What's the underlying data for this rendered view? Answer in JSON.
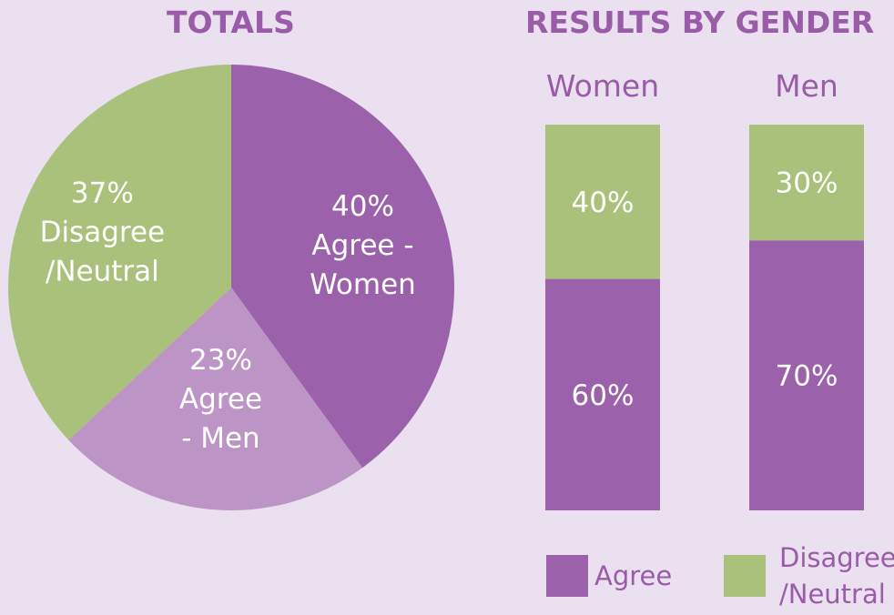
{
  "colors": {
    "background": "#ebe0ef",
    "agree": "#9b61aa",
    "agree_men_light": "#bc94c6",
    "disagree": "#aac17c",
    "title": "#9a5ca8",
    "label_on_fill": "#ffffff"
  },
  "chart_data": [
    {
      "type": "pie",
      "title": "TOTALS",
      "slices": [
        {
          "label": [
            "40%",
            "Agree -",
            "Women"
          ],
          "value": 40,
          "color": "#9b61aa"
        },
        {
          "label": [
            "23%",
            "Agree",
            "- Men"
          ],
          "value": 23,
          "color": "#bc94c6"
        },
        {
          "label": [
            "37%",
            "Disagree",
            "/Neutral"
          ],
          "value": 37,
          "color": "#aac17c"
        }
      ]
    },
    {
      "type": "bar",
      "stacked": true,
      "title": "RESULTS BY GENDER",
      "categories": [
        "Women",
        "Men"
      ],
      "series": [
        {
          "name": "Agree",
          "values": [
            60,
            70
          ],
          "labels": [
            "60%",
            "70%"
          ],
          "color": "#9b61aa"
        },
        {
          "name": "Disagree /Neutral",
          "legend_lines": [
            "Disagree",
            "/Neutral"
          ],
          "values": [
            40,
            30
          ],
          "labels": [
            "40%",
            "30%"
          ],
          "color": "#aac17c"
        }
      ],
      "ylim": [
        0,
        100
      ],
      "legend_position": "bottom"
    }
  ]
}
